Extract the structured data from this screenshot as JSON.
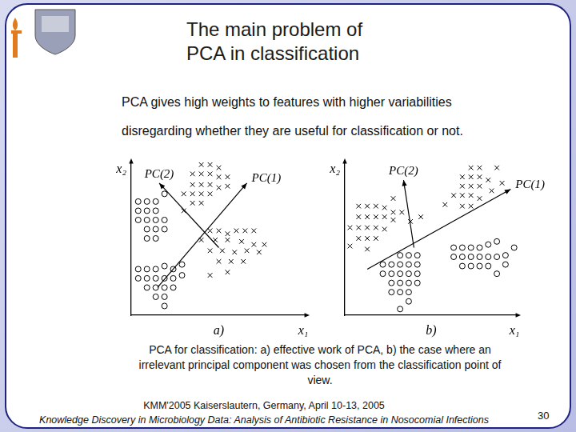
{
  "slide": {
    "title_lines": [
      "The main problem of",
      "PCA in classification"
    ],
    "text_lines": [
      "PCA gives high weights to features with higher variabilities",
      "disregarding whether they are useful for classification or not."
    ],
    "caption_lines": [
      "PCA for classification: a) effective work of PCA, b) the case where an",
      "irrelevant principal component was chosen from the classification point of",
      "view."
    ],
    "footer_lines": [
      "KMM'2005 Kaiserslautern, Germany, April 10-13, 2005",
      "Knowledge Discovery in Microbiology Data: Analysis of Antibiotic Resistance in Nosocomial Infections"
    ],
    "page_number": 30
  },
  "chart_data": [
    {
      "type": "scatter",
      "subtitle": "a)",
      "x_label": "x₁",
      "y_label": "x₂",
      "xlim": [
        0,
        10
      ],
      "ylim": [
        0,
        10
      ],
      "grid": false,
      "tick_labels": false,
      "series": [
        {
          "marker": "circle",
          "color": "#000000",
          "x": [
            0.4,
            0.9,
            1.4,
            0.4,
            0.9,
            1.4,
            0.4,
            0.9,
            1.4,
            1.9,
            0.9,
            1.4,
            1.9,
            1.4,
            0.9,
            1.9,
            0.4,
            0.9,
            1.4,
            1.9,
            2.4,
            0.4,
            0.9,
            1.4,
            1.9,
            2.4,
            2.9,
            0.9,
            1.4,
            1.9,
            2.4,
            1.4,
            1.9,
            1.9,
            2.9
          ],
          "y": [
            7.4,
            7.4,
            7.4,
            6.8,
            6.8,
            6.8,
            6.2,
            6.2,
            6.2,
            6.2,
            5.6,
            5.6,
            5.6,
            5.0,
            5.0,
            7.9,
            3.0,
            3.0,
            3.0,
            3.2,
            3.0,
            2.4,
            2.4,
            2.4,
            2.4,
            2.4,
            2.6,
            1.8,
            1.8,
            1.8,
            1.8,
            1.2,
            1.2,
            0.6,
            3.3
          ]
        },
        {
          "marker": "x",
          "color": "#000000",
          "x": [
            4.0,
            4.5,
            5.0,
            3.5,
            4.0,
            4.5,
            5.0,
            5.5,
            3.5,
            4.0,
            4.5,
            5.0,
            3.0,
            3.5,
            4.0,
            4.5,
            3.5,
            4.0,
            3.0,
            5.5,
            4.5,
            5.0,
            5.5,
            6.0,
            6.5,
            7.0,
            4.0,
            4.8,
            5.5,
            6.3,
            7.0,
            7.6,
            4.5,
            5.2,
            5.9,
            6.6,
            7.3,
            5.0,
            5.7,
            6.4,
            4.5,
            5.5
          ],
          "y": [
            9.8,
            9.8,
            9.6,
            9.2,
            9.2,
            9.2,
            9.0,
            9.0,
            8.5,
            8.5,
            8.5,
            8.3,
            7.9,
            7.9,
            7.9,
            7.9,
            7.3,
            7.3,
            6.8,
            8.4,
            5.5,
            5.5,
            5.3,
            5.5,
            5.5,
            5.5,
            4.9,
            4.9,
            4.9,
            4.8,
            4.6,
            4.6,
            4.2,
            4.2,
            4.1,
            4.2,
            4.1,
            3.5,
            3.5,
            3.5,
            2.6,
            2.8
          ]
        }
      ],
      "annotations": [
        {
          "text": "PC(1)",
          "from": [
            1.5,
            1.8
          ],
          "to": [
            6.6,
            8.6
          ]
        },
        {
          "text": "PC(2)",
          "from": [
            5.0,
            4.4
          ],
          "to": [
            1.6,
            8.6
          ]
        }
      ]
    },
    {
      "type": "scatter",
      "subtitle": "b)",
      "x_label": "x₁",
      "y_label": "x₂",
      "xlim": [
        0,
        10
      ],
      "ylim": [
        0,
        10
      ],
      "grid": false,
      "tick_labels": false,
      "series": [
        {
          "marker": "circle",
          "color": "#000000",
          "x": [
            3.2,
            3.7,
            4.2,
            2.2,
            2.7,
            3.2,
            3.7,
            4.2,
            2.2,
            2.7,
            3.2,
            3.7,
            4.2,
            2.7,
            3.2,
            3.7,
            4.2,
            3.2,
            3.7,
            3.7,
            2.7,
            3.2,
            6.3,
            6.8,
            7.3,
            7.8,
            8.3,
            8.8,
            6.3,
            6.8,
            7.3,
            7.8,
            8.3,
            8.8,
            9.3,
            6.8,
            7.3,
            7.8,
            8.3,
            9.3,
            8.8,
            9.8
          ],
          "y": [
            3.9,
            3.9,
            3.9,
            3.3,
            3.3,
            3.3,
            3.3,
            3.3,
            2.7,
            2.7,
            2.7,
            2.7,
            2.7,
            2.1,
            2.1,
            2.1,
            2.1,
            1.5,
            1.5,
            0.9,
            1.5,
            0.4,
            4.4,
            4.4,
            4.4,
            4.4,
            4.6,
            4.8,
            3.8,
            3.8,
            3.8,
            3.8,
            3.8,
            3.8,
            3.9,
            3.2,
            3.2,
            3.2,
            3.2,
            3.3,
            2.7,
            4.4
          ]
        },
        {
          "marker": "x",
          "color": "#000000",
          "x": [
            0.8,
            1.3,
            1.8,
            2.3,
            2.8,
            3.3,
            0.8,
            1.3,
            1.8,
            2.3,
            2.8,
            0.3,
            0.8,
            1.3,
            1.8,
            2.3,
            0.8,
            1.3,
            1.8,
            0.3,
            1.3,
            3.8,
            4.4,
            2.8,
            7.3,
            7.8,
            8.8,
            6.8,
            7.3,
            7.8,
            8.3,
            9.1,
            6.8,
            7.3,
            7.8,
            8.5,
            6.3,
            6.8,
            7.3,
            7.8,
            5.8,
            6.8,
            7.3
          ],
          "y": [
            7.1,
            7.1,
            7.1,
            7.0,
            6.7,
            6.7,
            6.4,
            6.4,
            6.4,
            6.4,
            6.2,
            5.7,
            5.7,
            5.7,
            5.7,
            5.6,
            5.0,
            5.0,
            5.0,
            4.5,
            4.3,
            6.1,
            6.4,
            7.6,
            9.6,
            9.6,
            9.6,
            9.0,
            9.0,
            9.0,
            8.8,
            8.6,
            8.4,
            8.4,
            8.4,
            8.1,
            7.8,
            7.8,
            7.8,
            7.6,
            7.2,
            7.1,
            7.1
          ]
        }
      ],
      "annotations": [
        {
          "text": "PC(1)",
          "from": [
            1.3,
            3.0
          ],
          "to": [
            9.6,
            8.2
          ]
        },
        {
          "text": "PC(2)",
          "from": [
            4.0,
            4.4
          ],
          "to": [
            3.4,
            8.8
          ]
        }
      ]
    }
  ]
}
